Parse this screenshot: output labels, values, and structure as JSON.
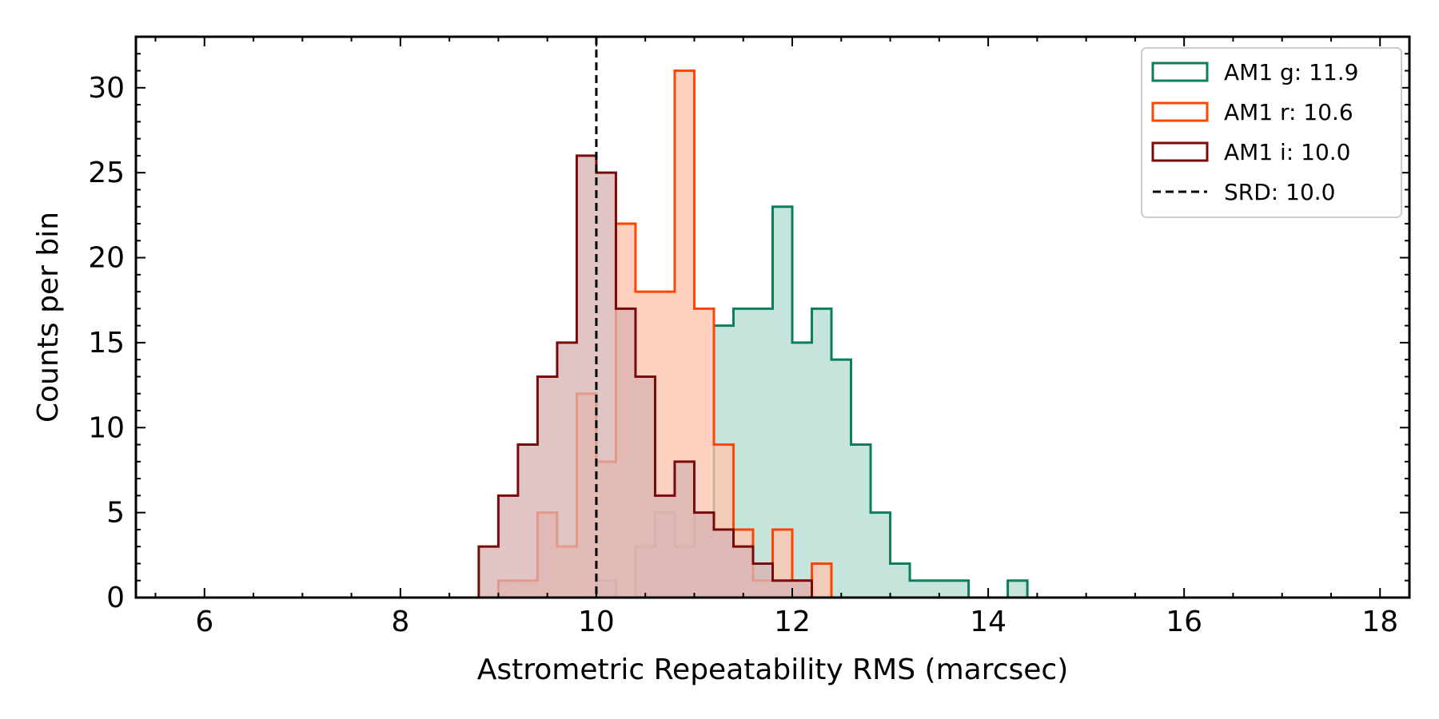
{
  "chart_data": {
    "type": "histogram",
    "xlabel": "Astrometric Repeatability RMS (marcsec)",
    "ylabel": "Counts per bin",
    "xlim": [
      5.3,
      18.3
    ],
    "ylim": [
      0,
      33
    ],
    "xticks": [
      6,
      8,
      10,
      12,
      14,
      16,
      18
    ],
    "yticks": [
      0,
      5,
      10,
      15,
      20,
      25,
      30
    ],
    "bin_width": 0.2,
    "grid": false,
    "legend_position": "top-right",
    "series": [
      {
        "name": "AM1 g: 11.9",
        "color": "#0b7e5e",
        "fill": "#b3dcd2",
        "bin_starts": [
          10.0,
          10.2,
          10.4,
          10.6,
          10.8,
          11.0,
          11.2,
          11.4,
          11.6,
          11.8,
          12.0,
          12.2,
          12.4,
          12.6,
          12.8,
          13.0,
          13.2,
          13.4,
          13.6,
          13.8,
          14.0,
          14.2
        ],
        "counts": [
          1,
          0,
          3,
          5,
          3,
          5,
          16,
          17,
          17,
          23,
          15,
          17,
          14,
          9,
          5,
          2,
          1,
          1,
          1,
          0,
          0,
          1
        ]
      },
      {
        "name": "AM1 r: 10.6",
        "color": "#ff4500",
        "fill": "#ffc4b0",
        "bin_starts": [
          9.0,
          9.2,
          9.4,
          9.6,
          9.8,
          10.0,
          10.2,
          10.4,
          10.6,
          10.8,
          11.0,
          11.2,
          11.4,
          11.6,
          11.8,
          12.0,
          12.2,
          12.4
        ],
        "counts": [
          1,
          1,
          5,
          3,
          12,
          8,
          22,
          18,
          18,
          31,
          17,
          9,
          4,
          1,
          4,
          1,
          2,
          0
        ]
      },
      {
        "name": "AM1 i: 10.0",
        "color": "#7a0a0a",
        "fill": "#d9b4b4",
        "bin_starts": [
          8.8,
          9.0,
          9.2,
          9.4,
          9.6,
          9.8,
          10.0,
          10.2,
          10.4,
          10.6,
          10.8,
          11.0,
          11.2,
          11.4,
          11.6,
          11.8,
          12.0
        ],
        "counts": [
          3,
          6,
          9,
          13,
          15,
          26,
          25,
          17,
          13,
          6,
          8,
          5,
          4,
          3,
          2,
          1,
          1
        ]
      }
    ],
    "reference_line": {
      "name": "SRD: 10.0",
      "x": 10.0,
      "style": "dashed",
      "color": "#000000"
    }
  }
}
